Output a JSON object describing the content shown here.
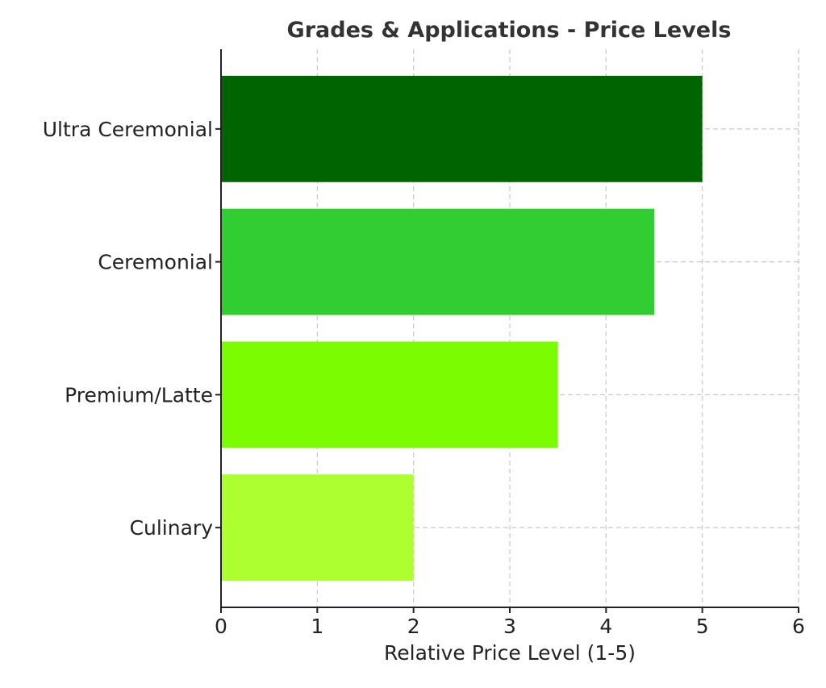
{
  "chart_data": {
    "type": "bar",
    "orientation": "horizontal",
    "title": "Grades & Applications - Price Levels",
    "xlabel": "Relative Price Level (1-5)",
    "ylabel": "",
    "categories": [
      "Ultra Ceremonial",
      "Ceremonial",
      "Premium/Latte",
      "Culinary"
    ],
    "values": [
      5,
      4.5,
      3.5,
      2
    ],
    "colors": [
      "#006400",
      "#32cd32",
      "#7cfc00",
      "#adff2f"
    ],
    "xlim": [
      0,
      6
    ],
    "xticks": [
      "0",
      "1",
      "2",
      "3",
      "4",
      "5",
      "6"
    ],
    "grid": true
  }
}
